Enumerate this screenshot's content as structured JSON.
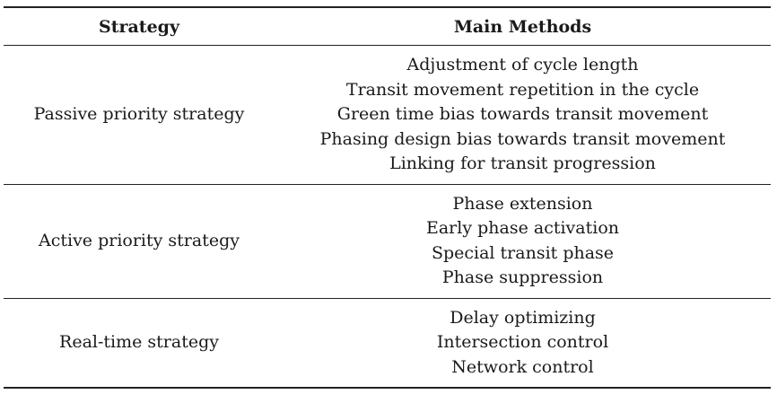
{
  "table": {
    "headers": [
      "Strategy",
      "Main Methods"
    ],
    "rows": [
      {
        "strategy": "Passive priority strategy",
        "methods": [
          "Adjustment of cycle length",
          "Transit movement repetition in the cycle",
          "Green time bias towards transit movement",
          "Phasing design bias towards transit movement",
          "Linking for transit progression"
        ]
      },
      {
        "strategy": "Active priority strategy",
        "methods": [
          "Phase extension",
          "Early phase activation",
          "Special transit phase",
          "Phase suppression"
        ]
      },
      {
        "strategy": "Real-time strategy",
        "methods": [
          "Delay optimizing",
          "Intersection control",
          "Network control"
        ]
      }
    ]
  }
}
